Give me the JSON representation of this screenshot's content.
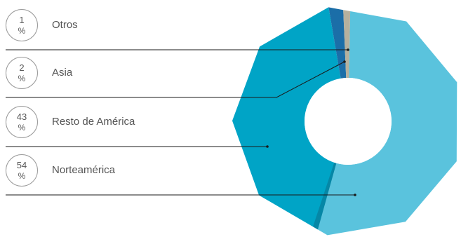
{
  "chart_data": {
    "type": "pie",
    "categories": [
      "Otros",
      "Asia",
      "Resto de América",
      "Norteamérica"
    ],
    "values": [
      1,
      2,
      43,
      54
    ],
    "unit": "%",
    "colors": [
      "#b5b09e",
      "#1b6ea8",
      "#00a4c6",
      "#5ac3dd"
    ],
    "donut": true,
    "legend_placement": "left"
  }
}
